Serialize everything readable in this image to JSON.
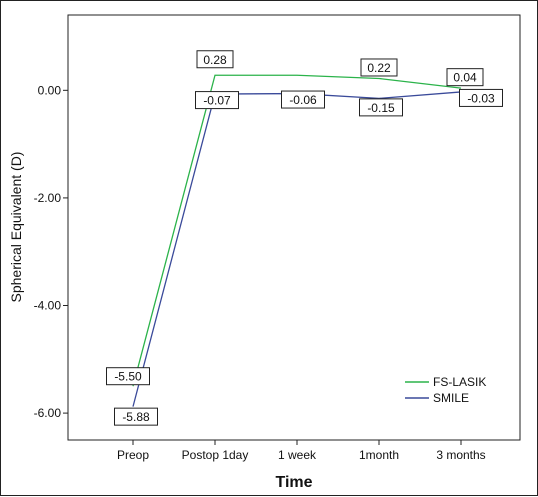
{
  "chart_data": {
    "type": "line",
    "title": "",
    "xlabel": "Time",
    "ylabel": "Spherical Equivalent (D)",
    "categories": [
      "Preop",
      "Postop 1day",
      "1 week",
      "1month",
      "3 months"
    ],
    "y_ticks": [
      "0.00",
      "-2.00",
      "-4.00",
      "-6.00"
    ],
    "y_tick_values": [
      0,
      -2,
      -4,
      -6
    ],
    "ylim": [
      -6.5,
      1.4
    ],
    "grid": false,
    "legend_position": "bottom-right",
    "series": [
      {
        "name": "FS-LASIK",
        "color": "#2bb34a",
        "values": [
          -5.5,
          0.28,
          0.28,
          0.22,
          0.04
        ],
        "labels": [
          "-5.50",
          "0.28",
          "",
          "0.22",
          "0.04"
        ]
      },
      {
        "name": "SMILE",
        "color": "#3a4a9a",
        "values": [
          -5.88,
          -0.07,
          -0.06,
          -0.15,
          -0.03
        ],
        "labels": [
          "-5.88",
          "-0.07",
          "-0.06",
          "-0.15",
          "-0.03"
        ]
      }
    ]
  }
}
